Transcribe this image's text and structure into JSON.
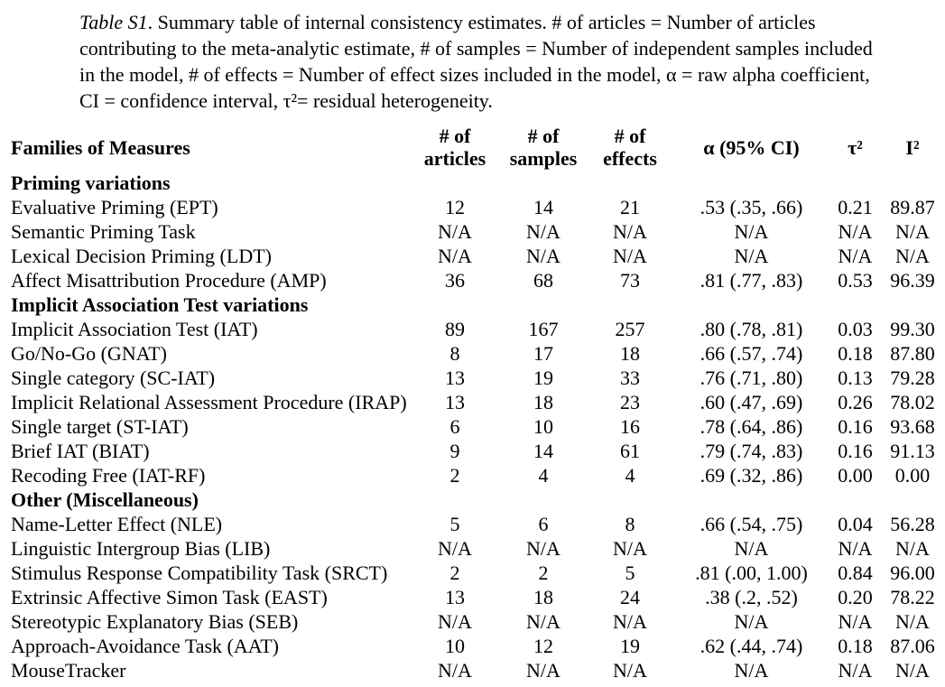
{
  "colors": {
    "text": "#000000",
    "background": "#ffffff"
  },
  "caption": {
    "table_number": "Table S1",
    "text": ". Summary table of internal consistency estimates. # of articles = Number of articles contributing to the meta-analytic estimate, # of samples = Number of independent samples included in the model, # of effects = Number of effect sizes included in the model, α = raw alpha coefficient, CI = confidence interval, τ²= residual heterogeneity."
  },
  "table": {
    "columns": [
      {
        "key": "label",
        "label": "Families of Measures"
      },
      {
        "key": "articles",
        "label": "# of articles"
      },
      {
        "key": "samples",
        "label": "# of samples"
      },
      {
        "key": "effects",
        "label": "# of effects"
      },
      {
        "key": "alpha",
        "label": "α (95% CI)"
      },
      {
        "key": "tau2",
        "label": "τ²"
      },
      {
        "key": "i2",
        "label": "I²"
      }
    ],
    "rows": [
      {
        "type": "section",
        "label": "Priming variations"
      },
      {
        "type": "data",
        "label": "Evaluative Priming (EPT)",
        "articles": "12",
        "samples": "14",
        "effects": "21",
        "alpha": ".53 (.35, .66)",
        "tau2": "0.21",
        "i2": "89.87"
      },
      {
        "type": "data",
        "label": "Semantic Priming Task",
        "articles": "N/A",
        "samples": "N/A",
        "effects": "N/A",
        "alpha": "N/A",
        "tau2": "N/A",
        "i2": "N/A"
      },
      {
        "type": "data",
        "label": "Lexical Decision Priming (LDT)",
        "articles": "N/A",
        "samples": "N/A",
        "effects": "N/A",
        "alpha": "N/A",
        "tau2": "N/A",
        "i2": "N/A"
      },
      {
        "type": "data",
        "label": "Affect Misattribution Procedure (AMP)",
        "articles": "36",
        "samples": "68",
        "effects": "73",
        "alpha": ".81 (.77, .83)",
        "tau2": "0.53",
        "i2": "96.39"
      },
      {
        "type": "section",
        "label": "Implicit Association Test variations"
      },
      {
        "type": "data",
        "label": "Implicit Association Test (IAT)",
        "articles": "89",
        "samples": "167",
        "effects": "257",
        "alpha": ".80 (.78, .81)",
        "tau2": "0.03",
        "i2": "99.30"
      },
      {
        "type": "data",
        "label": "Go/No-Go (GNAT)",
        "articles": "8",
        "samples": "17",
        "effects": "18",
        "alpha": ".66 (.57, .74)",
        "tau2": "0.18",
        "i2": "87.80"
      },
      {
        "type": "data",
        "label": "Single category (SC-IAT)",
        "articles": "13",
        "samples": "19",
        "effects": "33",
        "alpha": ".76 (.71, .80)",
        "tau2": "0.13",
        "i2": "79.28"
      },
      {
        "type": "data",
        "label": "Implicit Relational Assessment Procedure (IRAP)",
        "articles": "13",
        "samples": "18",
        "effects": "23",
        "alpha": ".60 (.47, .69)",
        "tau2": "0.26",
        "i2": "78.02"
      },
      {
        "type": "data",
        "label": "Single target (ST-IAT)",
        "articles": "6",
        "samples": "10",
        "effects": "16",
        "alpha": ".78 (.64, .86)",
        "tau2": "0.16",
        "i2": "93.68"
      },
      {
        "type": "data",
        "label": "Brief IAT  (BIAT)",
        "articles": "9",
        "samples": "14",
        "effects": "61",
        "alpha": ".79 (.74, .83)",
        "tau2": "0.16",
        "i2": "91.13"
      },
      {
        "type": "data",
        "label": "Recoding Free (IAT-RF)",
        "articles": "2",
        "samples": "4",
        "effects": "4",
        "alpha": ".69 (.32, .86)",
        "tau2": "0.00",
        "i2": "0.00"
      },
      {
        "type": "section",
        "label": "Other (Miscellaneous)"
      },
      {
        "type": "data",
        "label": "Name-Letter Effect (NLE)",
        "articles": "5",
        "samples": "6",
        "effects": "8",
        "alpha": ".66 (.54, .75)",
        "tau2": "0.04",
        "i2": "56.28"
      },
      {
        "type": "data",
        "label": "Linguistic Intergroup Bias (LIB)",
        "articles": "N/A",
        "samples": "N/A",
        "effects": "N/A",
        "alpha": "N/A",
        "tau2": "N/A",
        "i2": "N/A"
      },
      {
        "type": "data",
        "label": "Stimulus Response Compatibility Task (SRCT)",
        "articles": "2",
        "samples": "2",
        "effects": "5",
        "alpha": ".81 (.00, 1.00)",
        "tau2": "0.84",
        "i2": "96.00"
      },
      {
        "type": "data",
        "label": "Extrinsic Affective Simon Task (EAST)",
        "articles": "13",
        "samples": "18",
        "effects": "24",
        "alpha": ".38 (.2, .52)",
        "tau2": "0.20",
        "i2": "78.22"
      },
      {
        "type": "data",
        "label": "Stereotypic Explanatory Bias (SEB)",
        "articles": "N/A",
        "samples": "N/A",
        "effects": "N/A",
        "alpha": "N/A",
        "tau2": "N/A",
        "i2": "N/A"
      },
      {
        "type": "data",
        "label": "Approach-Avoidance Task (AAT)",
        "articles": "10",
        "samples": "12",
        "effects": "19",
        "alpha": ".62 (.44, .74)",
        "tau2": "0.18",
        "i2": "87.06"
      },
      {
        "type": "data",
        "label": "MouseTracker",
        "articles": "N/A",
        "samples": "N/A",
        "effects": "N/A",
        "alpha": "N/A",
        "tau2": "N/A",
        "i2": "N/A"
      }
    ]
  }
}
